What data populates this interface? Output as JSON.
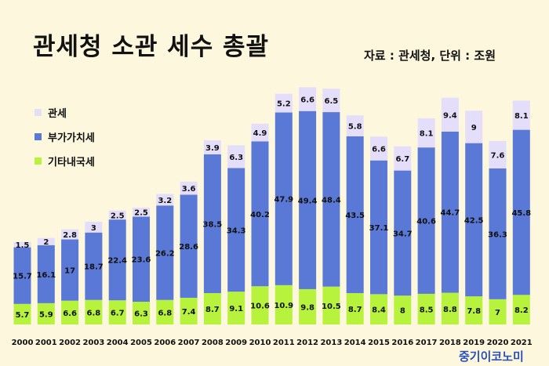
{
  "header": {
    "title": "관세청 소관 세수 총괄",
    "source": "자료 : 관세청, 단위 : 조원"
  },
  "brand": "중기이코노미",
  "colors": {
    "background": "#fdf7dd",
    "customs": "#e5defa",
    "vat": "#5a78d6",
    "other": "#b7f23d"
  },
  "chart_data": {
    "type": "bar",
    "stacked": true,
    "categories": [
      "2000",
      "2001",
      "2002",
      "2003",
      "2004",
      "2005",
      "2006",
      "2007",
      "2008",
      "2009",
      "2010",
      "2011",
      "2012",
      "2013",
      "2014",
      "2015",
      "2016",
      "2017",
      "2018",
      "2019",
      "2020",
      "2021"
    ],
    "series": [
      {
        "name": "기타내국세",
        "color": "#b7f23d",
        "values": [
          5.7,
          5.9,
          6.6,
          6.8,
          6.7,
          6.3,
          6.8,
          7.4,
          8.7,
          9.1,
          10.6,
          10.9,
          9.8,
          10.5,
          8.7,
          8.4,
          8,
          8.5,
          8.8,
          7.8,
          7,
          8.2
        ]
      },
      {
        "name": "부가가치세",
        "color": "#5a78d6",
        "values": [
          15.7,
          16.1,
          17,
          18.7,
          22.4,
          23.6,
          26.2,
          28.6,
          38.5,
          34.3,
          40.2,
          47.9,
          49.4,
          48.4,
          43.5,
          37.1,
          34.7,
          40.6,
          44.7,
          42.5,
          36.3,
          45.8
        ]
      },
      {
        "name": "관세",
        "color": "#e5defa",
        "values": [
          1.5,
          2,
          2.8,
          3,
          2.5,
          2.5,
          3.2,
          3.6,
          3.9,
          6.3,
          4.9,
          5.2,
          6.6,
          6.5,
          5.8,
          6.6,
          6.7,
          8.1,
          9.4,
          9,
          7.6,
          8.1
        ]
      }
    ],
    "legend": [
      "관세",
      "부가가치세",
      "기타내국세"
    ],
    "legend_position": "top-left",
    "data_labels": true,
    "grid": false
  }
}
